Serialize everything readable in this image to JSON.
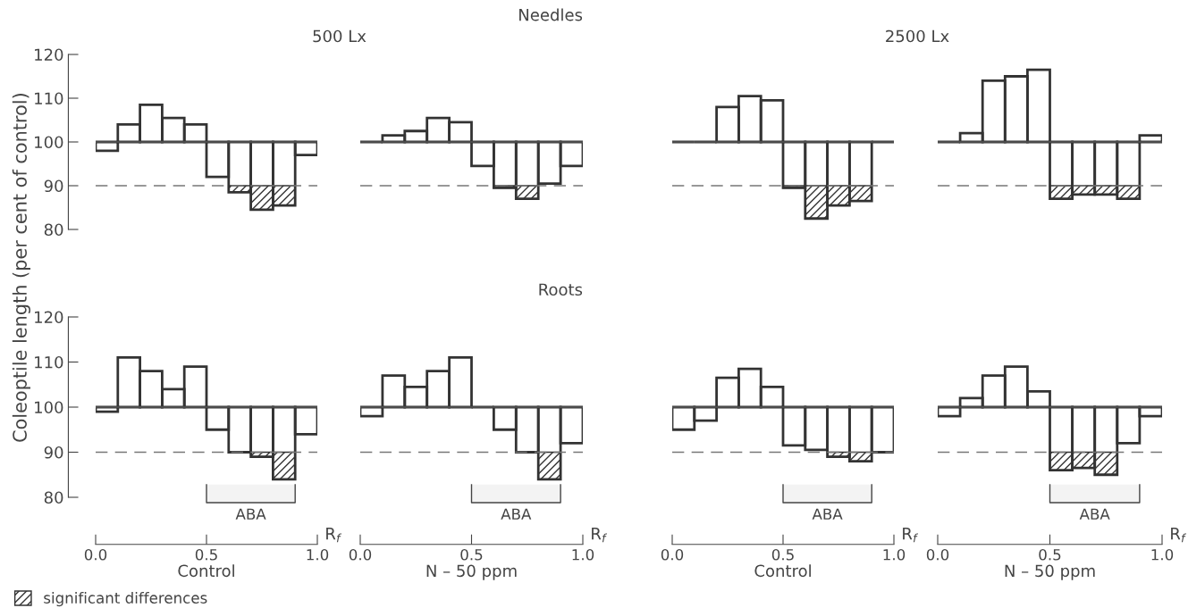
{
  "chart_data": [
    {
      "type": "histogram",
      "subtitle": "500 Lx",
      "ylabel": "Coleoptile length (per cent of control)",
      "bins": [
        0,
        0.1,
        0.2,
        0.3,
        0.4,
        0.5,
        0.6,
        0.7,
        0.8,
        0.9,
        1.0
      ],
      "xlim": [
        0,
        1
      ],
      "ylim": [
        80,
        120
      ],
      "yticks": [
        80,
        90,
        100,
        110,
        120
      ],
      "tick_labels": "y",
      "legend": "bottom left",
      "series": [
        {
          "color": "#333333",
          "base": [
            100,
            100,
            100,
            100,
            100,
            100,
            100,
            100,
            100,
            100
          ],
          "values": [
            -2,
            4,
            8.5,
            5.5,
            4,
            -8,
            -11.5,
            -15.5,
            -14.5,
            -3
          ]
        },
        {
          "name": "significant differences",
          "color": "#333333",
          "base": [
            null,
            null,
            null,
            null,
            null,
            null,
            90,
            90,
            90,
            null
          ],
          "values": [
            null,
            null,
            null,
            null,
            null,
            null,
            -1.5,
            -5.5,
            -4.5,
            null
          ]
        }
      ],
      "ref_lines": [
        {
          "axis": "y",
          "value": 100,
          "line_style": "solid",
          "color": "#555555"
        },
        {
          "axis": "y",
          "value": 90,
          "line_style": "dashed",
          "color": "#777777"
        }
      ]
    },
    {
      "type": "histogram",
      "title": "Needles",
      "bins": [
        0,
        0.1,
        0.2,
        0.3,
        0.4,
        0.5,
        0.6,
        0.7,
        0.8,
        0.9,
        1.0
      ],
      "xlim": [
        0,
        1
      ],
      "ylim": [
        80,
        120
      ],
      "tick_labels": false,
      "series": [
        {
          "color": "#333333",
          "base": [
            100,
            100,
            100,
            100,
            100,
            100,
            100,
            100,
            100,
            100
          ],
          "values": [
            0,
            1.5,
            2.5,
            5.5,
            4.5,
            -5.5,
            -10.5,
            -13,
            -9.5,
            -5.5
          ]
        },
        {
          "color": "#333333",
          "base": [
            null,
            null,
            null,
            null,
            null,
            null,
            90,
            90,
            null,
            null
          ],
          "values": [
            null,
            null,
            null,
            null,
            null,
            null,
            -0.5,
            -3,
            null,
            null
          ]
        }
      ],
      "ref_lines": [
        {
          "axis": "y",
          "value": 100,
          "line_style": "solid",
          "color": "#555555"
        },
        {
          "axis": "y",
          "value": 90,
          "line_style": "dashed",
          "color": "#777777"
        }
      ]
    },
    {
      "type": "histogram",
      "subtitle": "2500 Lx",
      "bins": [
        0,
        0.1,
        0.2,
        0.3,
        0.4,
        0.5,
        0.6,
        0.7,
        0.8,
        0.9,
        1.0
      ],
      "xlim": [
        0,
        1
      ],
      "ylim": [
        80,
        120
      ],
      "tick_labels": false,
      "series": [
        {
          "color": "#333333",
          "base": [
            100,
            100,
            100,
            100,
            100,
            100,
            100,
            100,
            100,
            100
          ],
          "values": [
            0,
            0,
            8,
            10.5,
            9.5,
            -10.5,
            -17.5,
            -14.5,
            -13.5,
            0
          ]
        },
        {
          "color": "#333333",
          "base": [
            null,
            null,
            null,
            null,
            null,
            90,
            90,
            90,
            90,
            null
          ],
          "values": [
            null,
            null,
            null,
            null,
            null,
            -0.5,
            -7.5,
            -4.5,
            -3.5,
            null
          ]
        }
      ],
      "ref_lines": [
        {
          "axis": "y",
          "value": 100,
          "line_style": "solid",
          "color": "#555555"
        },
        {
          "axis": "y",
          "value": 90,
          "line_style": "dashed",
          "color": "#777777"
        }
      ]
    },
    {
      "type": "histogram",
      "bins": [
        0,
        0.1,
        0.2,
        0.3,
        0.4,
        0.5,
        0.6,
        0.7,
        0.8,
        0.9,
        1.0
      ],
      "xlim": [
        0,
        1
      ],
      "ylim": [
        80,
        120
      ],
      "tick_labels": false,
      "series": [
        {
          "color": "#333333",
          "base": [
            100,
            100,
            100,
            100,
            100,
            100,
            100,
            100,
            100,
            100
          ],
          "values": [
            0,
            2,
            14,
            15,
            16.5,
            -13,
            -12,
            -12,
            -13,
            1.5
          ]
        },
        {
          "color": "#333333",
          "base": [
            null,
            null,
            null,
            null,
            null,
            90,
            90,
            90,
            90,
            null
          ],
          "values": [
            null,
            null,
            null,
            null,
            null,
            -3,
            -2,
            -2,
            -3,
            null
          ]
        }
      ],
      "ref_lines": [
        {
          "axis": "y",
          "value": 100,
          "line_style": "solid",
          "color": "#555555"
        },
        {
          "axis": "y",
          "value": 90,
          "line_style": "dashed",
          "color": "#777777"
        }
      ]
    },
    {
      "type": "histogram",
      "xlabel": "Control",
      "annotations": [
        "R$_{f}$"
      ],
      "bins": [
        0,
        0.1,
        0.2,
        0.3,
        0.4,
        0.5,
        0.6,
        0.7,
        0.8,
        0.9,
        1.0
      ],
      "xlim": [
        0,
        1
      ],
      "xticks": [
        {
          "value": 0,
          "label": "0.0"
        },
        {
          "value": 0.5,
          "label": "0.5"
        },
        {
          "value": 1,
          "label": "1.0"
        }
      ],
      "ylim": [
        80,
        120
      ],
      "yticks": [
        80,
        90,
        100,
        110,
        120
      ],
      "series": [
        {
          "color": "#333333",
          "base": [
            100,
            100,
            100,
            100,
            100,
            100,
            100,
            100,
            100,
            100
          ],
          "values": [
            -1,
            11,
            8,
            4,
            9,
            -5,
            -10,
            -11,
            -16,
            -6
          ]
        },
        {
          "color": "#333333",
          "base": [
            null,
            null,
            null,
            null,
            null,
            null,
            null,
            90,
            90,
            null
          ],
          "values": [
            null,
            null,
            null,
            null,
            null,
            null,
            null,
            -1,
            -6,
            null
          ]
        }
      ],
      "ref_lines": [
        {
          "axis": "y",
          "value": 100,
          "line_style": "solid",
          "color": "#555555"
        },
        {
          "axis": "y",
          "value": 90,
          "line_style": "dashed",
          "color": "#777777"
        }
      ],
      "bands": [
        {
          "axis": "x",
          "from": 0.5,
          "to": 0.9,
          "label": "ABA"
        }
      ]
    },
    {
      "type": "histogram",
      "title": "Roots",
      "xlabel": "N – 50 ppm",
      "annotations": [
        "R$_{f}$"
      ],
      "bins": [
        0,
        0.1,
        0.2,
        0.3,
        0.4,
        0.5,
        0.6,
        0.7,
        0.8,
        0.9,
        1.0
      ],
      "xlim": [
        0,
        1
      ],
      "xticks": [
        {
          "value": 0,
          "label": "0.0"
        },
        {
          "value": 0.5,
          "label": "0.5"
        },
        {
          "value": 1,
          "label": "1.0"
        }
      ],
      "ylim": [
        80,
        120
      ],
      "tick_labels": "x",
      "series": [
        {
          "color": "#333333",
          "base": [
            100,
            100,
            100,
            100,
            100,
            100,
            100,
            100,
            100,
            100
          ],
          "values": [
            -2,
            7,
            4.5,
            8,
            11,
            0,
            -5,
            -10,
            -16,
            -8
          ]
        },
        {
          "color": "#333333",
          "base": [
            null,
            null,
            null,
            null,
            null,
            null,
            null,
            null,
            90,
            null
          ],
          "values": [
            null,
            null,
            null,
            null,
            null,
            null,
            null,
            null,
            -6,
            null
          ]
        }
      ],
      "ref_lines": [
        {
          "axis": "y",
          "value": 100,
          "line_style": "solid",
          "color": "#555555"
        },
        {
          "axis": "y",
          "value": 90,
          "line_style": "dashed",
          "color": "#777777"
        }
      ],
      "bands": [
        {
          "axis": "x",
          "from": 0.5,
          "to": 0.9,
          "label": "ABA"
        }
      ]
    },
    {
      "type": "histogram",
      "xlabel": "Control",
      "annotations": [
        "R$_{f}$"
      ],
      "bins": [
        0,
        0.1,
        0.2,
        0.3,
        0.4,
        0.5,
        0.6,
        0.7,
        0.8,
        0.9,
        1.0
      ],
      "xlim": [
        0,
        1
      ],
      "xticks": [
        {
          "value": 0,
          "label": "0.0"
        },
        {
          "value": 0.5,
          "label": "0.5"
        },
        {
          "value": 1,
          "label": "1.0"
        }
      ],
      "ylim": [
        80,
        120
      ],
      "tick_labels": "x",
      "series": [
        {
          "color": "#333333",
          "base": [
            100,
            100,
            100,
            100,
            100,
            100,
            100,
            100,
            100,
            100
          ],
          "values": [
            -5,
            -3,
            6.5,
            8.5,
            4.5,
            -8.5,
            -9.5,
            -11,
            -12,
            -10
          ]
        },
        {
          "color": "#333333",
          "base": [
            null,
            null,
            null,
            null,
            null,
            null,
            null,
            90,
            90,
            null
          ],
          "values": [
            null,
            null,
            null,
            null,
            null,
            null,
            null,
            -1,
            -2,
            null
          ]
        }
      ],
      "ref_lines": [
        {
          "axis": "y",
          "value": 100,
          "line_style": "solid",
          "color": "#555555"
        },
        {
          "axis": "y",
          "value": 90,
          "line_style": "dashed",
          "color": "#777777"
        }
      ],
      "bands": [
        {
          "axis": "x",
          "from": 0.5,
          "to": 0.9,
          "label": "ABA"
        }
      ]
    },
    {
      "type": "histogram",
      "xlabel": "N – 50 ppm",
      "annotations": [
        "R$_{f}$"
      ],
      "bins": [
        0,
        0.1,
        0.2,
        0.3,
        0.4,
        0.5,
        0.6,
        0.7,
        0.8,
        0.9,
        1.0
      ],
      "xlim": [
        0,
        1
      ],
      "xticks": [
        {
          "value": 0,
          "label": "0.0"
        },
        {
          "value": 0.5,
          "label": "0.5"
        },
        {
          "value": 1,
          "label": "1.0"
        }
      ],
      "ylim": [
        80,
        120
      ],
      "tick_labels": "x",
      "series": [
        {
          "color": "#333333",
          "base": [
            100,
            100,
            100,
            100,
            100,
            100,
            100,
            100,
            100,
            100
          ],
          "values": [
            -2,
            2,
            7,
            9,
            3.5,
            -14,
            -13.5,
            -15,
            -8,
            -2
          ]
        },
        {
          "color": "#333333",
          "base": [
            null,
            null,
            null,
            null,
            null,
            90,
            90,
            90,
            null,
            null
          ],
          "values": [
            null,
            null,
            null,
            null,
            null,
            -4,
            -3.5,
            -5,
            null,
            null
          ]
        }
      ],
      "ref_lines": [
        {
          "axis": "y",
          "value": 100,
          "line_style": "solid",
          "color": "#555555"
        },
        {
          "axis": "y",
          "value": 90,
          "line_style": "dashed",
          "color": "#777777"
        }
      ],
      "bands": [
        {
          "axis": "x",
          "from": 0.5,
          "to": 0.9,
          "label": "ABA"
        }
      ]
    }
  ]
}
